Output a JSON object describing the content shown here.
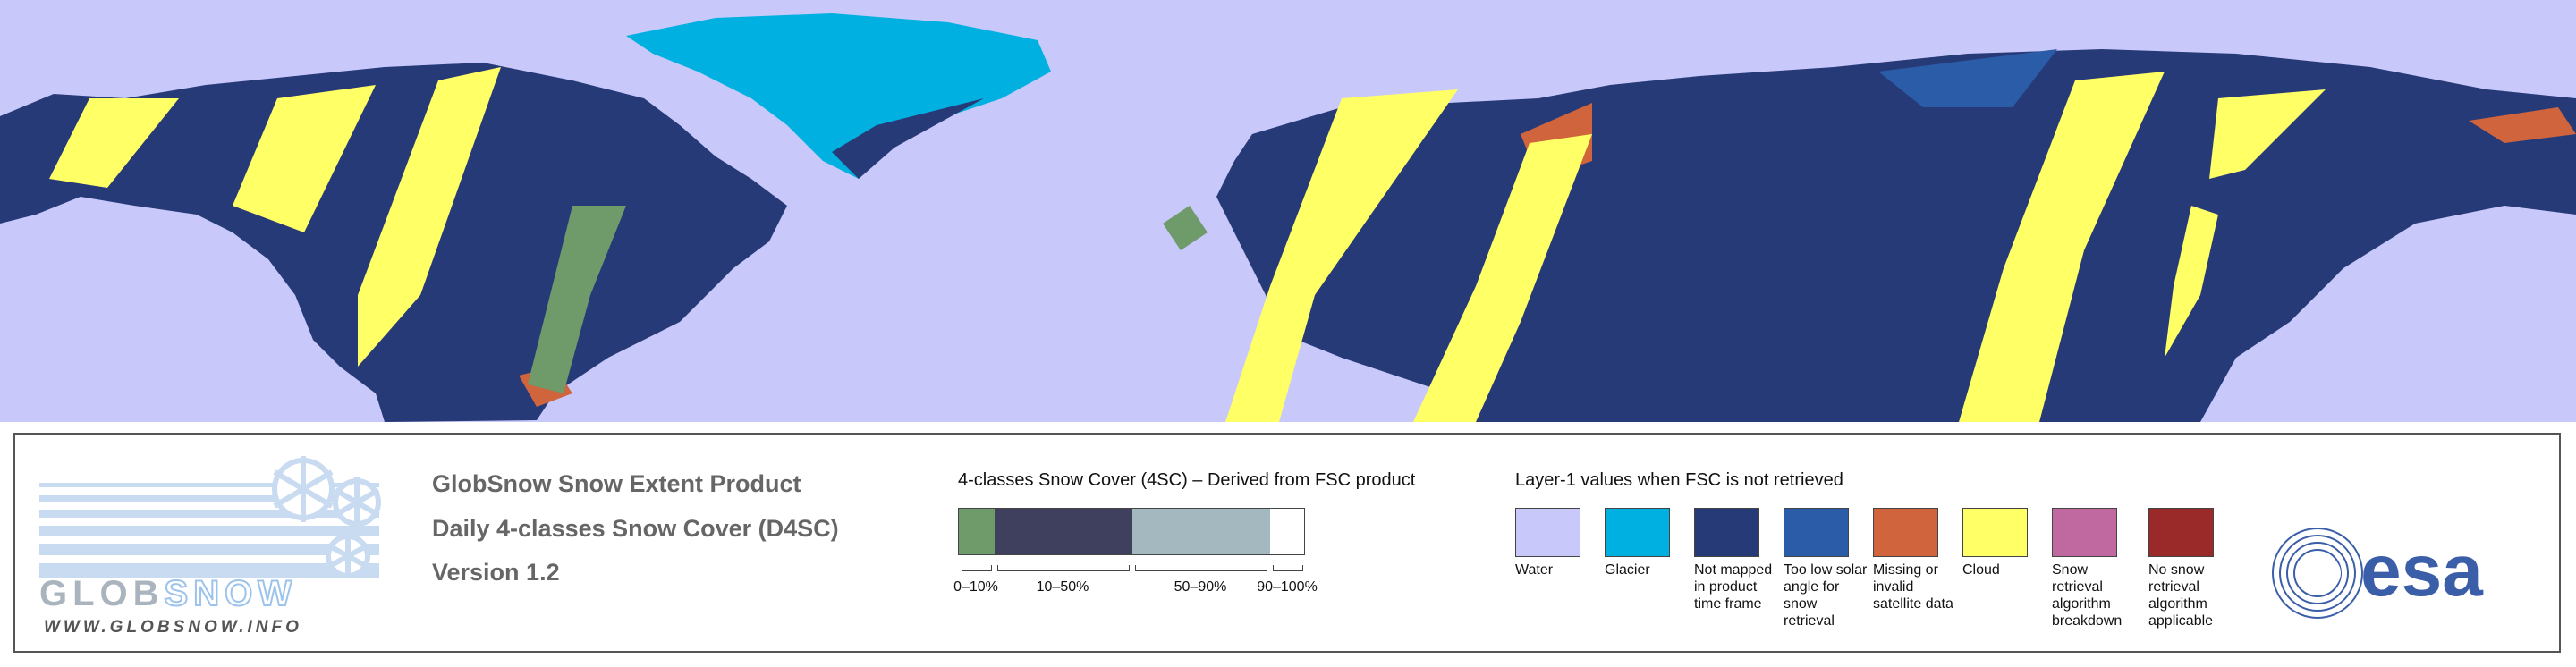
{
  "logo": {
    "word_parts": [
      "GLOB",
      "SNOW"
    ],
    "url": "WWW.GLOBSNOW.INFO"
  },
  "product": {
    "lines": [
      "GlobSnow Snow Extent Product",
      "Daily 4-classes Snow Cover (D4SC)",
      "Version 1.2"
    ]
  },
  "fsc_legend": {
    "title": "4-classes Snow Cover (4SC) – Derived from FSC product",
    "classes": [
      {
        "label": "0–10%",
        "color": "#6f9a6a"
      },
      {
        "label": "10–50%",
        "color": "#3f3f5e"
      },
      {
        "label": "50–90%",
        "color": "#a3b9bf"
      },
      {
        "label": "90–100%",
        "color": "#ffffff"
      }
    ]
  },
  "layer1_legend": {
    "title": "Layer-1 values when FSC is not retrieved",
    "items": [
      {
        "label": "Water",
        "color": "#c8c8fa"
      },
      {
        "label": "Glacier",
        "color": "#00b0e0"
      },
      {
        "label": "Not mapped in product time frame",
        "color": "#273a78"
      },
      {
        "label": "Too low solar angle for snow retrieval",
        "color": "#2a5ca8"
      },
      {
        "label": "Missing or invalid satellite data",
        "color": "#d0643c"
      },
      {
        "label": "Cloud",
        "color": "#ffff66"
      },
      {
        "label": "Snow retrieval algorithm breakdown",
        "color": "#c069a0"
      },
      {
        "label": "No snow retrieval algorithm applicable",
        "color": "#9a2a2a"
      }
    ]
  },
  "esa": {
    "text": "esa"
  }
}
